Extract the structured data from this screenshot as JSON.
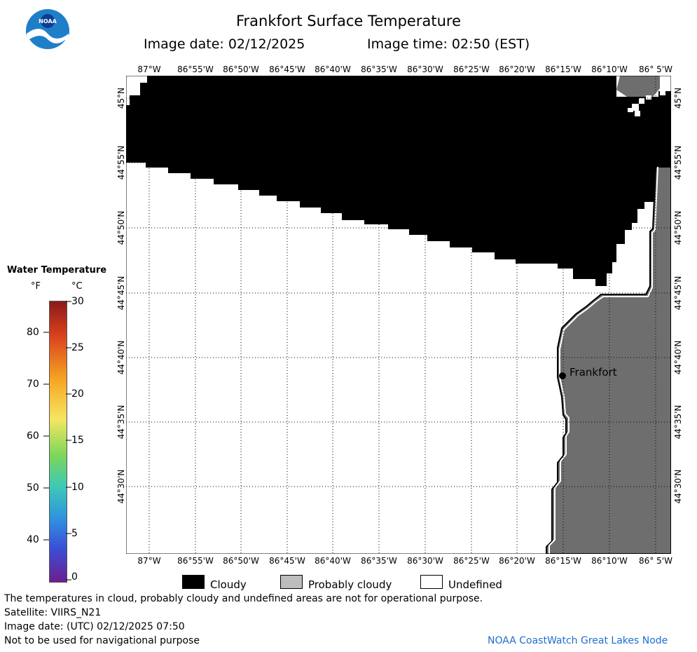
{
  "header": {
    "title": "Frankfort Surface Temperature",
    "image_date": "Image date: 02/12/2025",
    "image_time": "Image time: 02:50 (EST)",
    "logo_text": "NOAA"
  },
  "map": {
    "lon_labels": [
      "87°W",
      "86°55'W",
      "86°50'W",
      "86°45'W",
      "86°40'W",
      "86°35'W",
      "86°30'W",
      "86°25'W",
      "86°20'W",
      "86°15'W",
      "86°10'W",
      "86° 5'W"
    ],
    "lon_labels_bottom": [
      "87°W",
      "86°55'W",
      "86°50'W",
      "86°45'W",
      "86°40'W",
      "86°35'W",
      "86°30'W",
      "86°25'W",
      "86°20'W",
      "86°15'W",
      "86°10'W",
      "86° 5'W"
    ],
    "lat_labels": [
      "45°N",
      "44°55'N",
      "44°50'N",
      "44°45'N",
      "44°40'N",
      "44°35'N",
      "44°30'N"
    ],
    "city": "Frankfort",
    "colors": {
      "cloudy": "#000000",
      "probably_cloudy": "#6e6e6e",
      "undefined": "#ffffff"
    }
  },
  "legend": {
    "title": "Water Temperature",
    "unit_f": "°F",
    "unit_c": "°C",
    "f_ticks": [
      "80",
      "70",
      "60",
      "50",
      "40"
    ],
    "c_ticks": [
      "30",
      "25",
      "20",
      "15",
      "10",
      "5",
      "0"
    ]
  },
  "key": {
    "cloudy": "Cloudy",
    "probably_cloudy": "Probably cloudy",
    "undefined": "Undefined"
  },
  "footer": {
    "line1": "The temperatures in cloud, probably cloudy and undefined areas are not for operational purpose.",
    "line2": "Satellite: VIIRS_N21",
    "line3": "Image date: (UTC) 02/12/2025  07:50",
    "line4": "Not to be used for navigational purpose",
    "credit": "NOAA CoastWatch Great Lakes Node"
  }
}
